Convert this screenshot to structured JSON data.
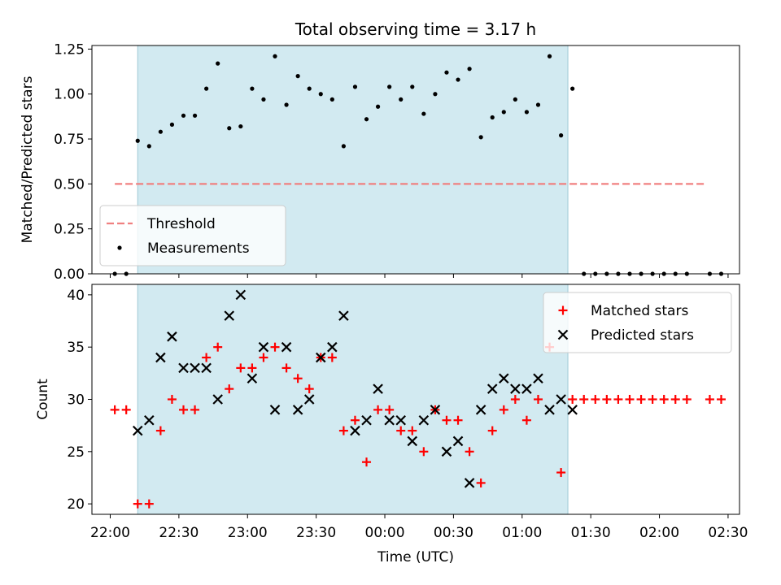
{
  "chart_data": {
    "title": "Total observing time = 3.17 h",
    "xlabel": "Time (UTC)",
    "x_ticks": [
      "22:00",
      "22:30",
      "23:00",
      "23:30",
      "00:00",
      "00:30",
      "01:00",
      "01:30",
      "02:00",
      "02:30"
    ],
    "x_tick_minutes": [
      1320,
      1350,
      1380,
      1410,
      1440,
      1470,
      1500,
      1530,
      1560,
      1590
    ],
    "xlim_minutes": [
      1312,
      1595
    ],
    "shaded_span_minutes": [
      1332,
      1520
    ],
    "shade_color": "#add8e6",
    "panels": [
      {
        "type": "scatter",
        "ylabel": "Matched/Predicted stars",
        "ylim": [
          0,
          1.27
        ],
        "y_ticks": [
          "0.00",
          "0.25",
          "0.50",
          "0.75",
          "1.00",
          "1.25"
        ],
        "y_tick_values": [
          0,
          0.25,
          0.5,
          0.75,
          1.0,
          1.25
        ],
        "threshold": {
          "name": "Threshold",
          "value": 0.5,
          "x_range_minutes": [
            1322,
            1580
          ],
          "color": "#f08080"
        },
        "legend_position": "lower-left",
        "series": [
          {
            "name": "Measurements",
            "marker": "dot",
            "color": "#000000",
            "points": [
              [
                1322,
                0.0
              ],
              [
                1327,
                0.0
              ],
              [
                1332,
                0.74
              ],
              [
                1337,
                0.71
              ],
              [
                1342,
                0.79
              ],
              [
                1347,
                0.83
              ],
              [
                1352,
                0.88
              ],
              [
                1357,
                0.88
              ],
              [
                1362,
                1.03
              ],
              [
                1367,
                1.17
              ],
              [
                1372,
                0.81
              ],
              [
                1377,
                0.82
              ],
              [
                1382,
                1.03
              ],
              [
                1387,
                0.97
              ],
              [
                1392,
                1.21
              ],
              [
                1397,
                0.94
              ],
              [
                1402,
                1.1
              ],
              [
                1407,
                1.03
              ],
              [
                1412,
                1.0
              ],
              [
                1417,
                0.97
              ],
              [
                1422,
                0.71
              ],
              [
                1427,
                1.04
              ],
              [
                1432,
                0.86
              ],
              [
                1437,
                0.93
              ],
              [
                1442,
                1.04
              ],
              [
                1447,
                0.97
              ],
              [
                1452,
                1.04
              ],
              [
                1457,
                0.89
              ],
              [
                1462,
                1.0
              ],
              [
                1467,
                1.12
              ],
              [
                1472,
                1.08
              ],
              [
                1477,
                1.14
              ],
              [
                1482,
                0.76
              ],
              [
                1487,
                0.87
              ],
              [
                1492,
                0.9
              ],
              [
                1497,
                0.97
              ],
              [
                1502,
                0.9
              ],
              [
                1507,
                0.94
              ],
              [
                1512,
                1.21
              ],
              [
                1517,
                0.77
              ],
              [
                1522,
                1.03
              ],
              [
                1527,
                0.0
              ],
              [
                1532,
                0.0
              ],
              [
                1537,
                0.0
              ],
              [
                1542,
                0.0
              ],
              [
                1547,
                0.0
              ],
              [
                1552,
                0.0
              ],
              [
                1557,
                0.0
              ],
              [
                1562,
                0.0
              ],
              [
                1567,
                0.0
              ],
              [
                1572,
                0.0
              ],
              [
                1582,
                0.0
              ],
              [
                1587,
                0.0
              ]
            ]
          }
        ]
      },
      {
        "type": "scatter",
        "ylabel": "Count",
        "ylim": [
          19,
          41
        ],
        "y_ticks": [
          "20",
          "25",
          "30",
          "35",
          "40"
        ],
        "y_tick_values": [
          20,
          25,
          30,
          35,
          40
        ],
        "legend_position": "upper-right",
        "series": [
          {
            "name": "Matched stars",
            "marker": "plus",
            "color": "#ff0000",
            "points": [
              [
                1322,
                29
              ],
              [
                1327,
                29
              ],
              [
                1332,
                20
              ],
              [
                1337,
                20
              ],
              [
                1342,
                27
              ],
              [
                1347,
                30
              ],
              [
                1352,
                29
              ],
              [
                1357,
                29
              ],
              [
                1362,
                34
              ],
              [
                1367,
                35
              ],
              [
                1372,
                31
              ],
              [
                1377,
                33
              ],
              [
                1382,
                33
              ],
              [
                1387,
                34
              ],
              [
                1392,
                35
              ],
              [
                1397,
                33
              ],
              [
                1402,
                32
              ],
              [
                1407,
                31
              ],
              [
                1412,
                34
              ],
              [
                1417,
                34
              ],
              [
                1422,
                27
              ],
              [
                1427,
                28
              ],
              [
                1432,
                24
              ],
              [
                1437,
                29
              ],
              [
                1442,
                29
              ],
              [
                1447,
                27
              ],
              [
                1452,
                27
              ],
              [
                1457,
                25
              ],
              [
                1462,
                29
              ],
              [
                1467,
                28
              ],
              [
                1472,
                28
              ],
              [
                1477,
                25
              ],
              [
                1482,
                22
              ],
              [
                1487,
                27
              ],
              [
                1492,
                29
              ],
              [
                1497,
                30
              ],
              [
                1502,
                28
              ],
              [
                1507,
                30
              ],
              [
                1512,
                35
              ],
              [
                1517,
                23
              ],
              [
                1522,
                30
              ],
              [
                1527,
                30
              ],
              [
                1532,
                30
              ],
              [
                1537,
                30
              ],
              [
                1542,
                30
              ],
              [
                1547,
                30
              ],
              [
                1552,
                30
              ],
              [
                1557,
                30
              ],
              [
                1562,
                30
              ],
              [
                1567,
                30
              ],
              [
                1572,
                30
              ],
              [
                1582,
                30
              ],
              [
                1587,
                30
              ]
            ]
          },
          {
            "name": "Predicted stars",
            "marker": "x",
            "color": "#000000",
            "points": [
              [
                1332,
                27
              ],
              [
                1337,
                28
              ],
              [
                1342,
                34
              ],
              [
                1347,
                36
              ],
              [
                1352,
                33
              ],
              [
                1357,
                33
              ],
              [
                1362,
                33
              ],
              [
                1367,
                30
              ],
              [
                1372,
                38
              ],
              [
                1377,
                40
              ],
              [
                1382,
                32
              ],
              [
                1387,
                35
              ],
              [
                1392,
                29
              ],
              [
                1397,
                35
              ],
              [
                1402,
                29
              ],
              [
                1407,
                30
              ],
              [
                1412,
                34
              ],
              [
                1417,
                35
              ],
              [
                1422,
                38
              ],
              [
                1427,
                27
              ],
              [
                1432,
                28
              ],
              [
                1437,
                31
              ],
              [
                1442,
                28
              ],
              [
                1447,
                28
              ],
              [
                1452,
                26
              ],
              [
                1457,
                28
              ],
              [
                1462,
                29
              ],
              [
                1467,
                25
              ],
              [
                1472,
                26
              ],
              [
                1477,
                22
              ],
              [
                1482,
                29
              ],
              [
                1487,
                31
              ],
              [
                1492,
                32
              ],
              [
                1497,
                31
              ],
              [
                1502,
                31
              ],
              [
                1507,
                32
              ],
              [
                1512,
                29
              ],
              [
                1517,
                30
              ],
              [
                1522,
                29
              ]
            ]
          }
        ]
      }
    ]
  }
}
